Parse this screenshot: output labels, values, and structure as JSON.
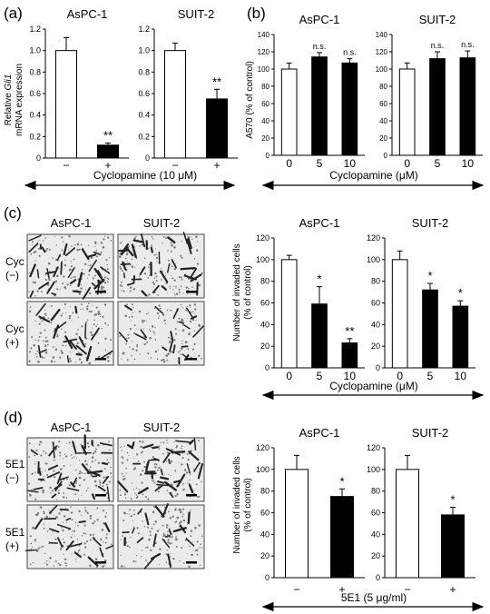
{
  "panel_letters": [
    "(a)",
    "(b)",
    "(c)",
    "(d)"
  ],
  "colors": {
    "control": "#ffffff",
    "treated": "#000000",
    "axis": "#000000"
  },
  "panel_a": {
    "ylabel_line1": "Relative ",
    "ylabel_italic": "Gli1",
    "ylabel_line2": "mRNA expression",
    "treatment_label": "Cyclopamine (10 μM)"
  },
  "panel_b": {
    "ylabel": "A570 (% of control)",
    "treatment_label": "Cyclopamine (μM)"
  },
  "panel_c": {
    "image_col_labels": [
      "AsPC-1",
      "SUIT-2"
    ],
    "image_row_labels": [
      [
        "Cyc",
        "(−)"
      ],
      [
        "Cyc",
        "(+)"
      ]
    ],
    "ylabel_line1": "Number of invaded cells",
    "ylabel_line2": "(% of control)",
    "treatment_label": "Cyclopamine (μM)"
  },
  "panel_d": {
    "image_col_labels": [
      "AsPC-1",
      "SUIT-2"
    ],
    "image_row_labels": [
      [
        "5E1",
        "(−)"
      ],
      [
        "5E1",
        "(+)"
      ]
    ],
    "ylabel_line1": "Number of invaded cells",
    "ylabel_line2": "(% of control)",
    "treatment_label": "5E1 (5 μg/ml)"
  },
  "chart_data": [
    {
      "id": "a-aspc1",
      "type": "bar",
      "title": "AsPC-1",
      "categories": [
        "−",
        "+"
      ],
      "values": [
        1.0,
        0.12
      ],
      "errors": [
        0.12,
        0.02
      ],
      "significance": [
        "",
        "**"
      ],
      "ylim": [
        0,
        1.2
      ],
      "yticks": [
        "0",
        "0.2",
        "0.4",
        "0.6",
        "0.8",
        "1.0",
        "1.2"
      ]
    },
    {
      "id": "a-suit2",
      "type": "bar",
      "title": "SUIT-2",
      "categories": [
        "−",
        "+"
      ],
      "values": [
        1.0,
        0.55
      ],
      "errors": [
        0.07,
        0.09
      ],
      "significance": [
        "",
        "**"
      ],
      "ylim": [
        0,
        1.2
      ],
      "yticks": [
        "0",
        "0.2",
        "0.4",
        "0.6",
        "0.8",
        "1.0",
        "1.2"
      ]
    },
    {
      "id": "b-aspc1",
      "type": "bar",
      "title": "AsPC-1",
      "categories": [
        "0",
        "5",
        "10"
      ],
      "values": [
        100,
        114,
        107
      ],
      "errors": [
        7,
        5,
        5
      ],
      "significance": [
        "",
        "n.s.",
        "n.s."
      ],
      "ylim": [
        0,
        140
      ],
      "yticks": [
        "0",
        "20",
        "40",
        "60",
        "80",
        "100",
        "120",
        "140"
      ]
    },
    {
      "id": "b-suit2",
      "type": "bar",
      "title": "SUIT-2",
      "categories": [
        "0",
        "5",
        "10"
      ],
      "values": [
        100,
        112,
        113
      ],
      "errors": [
        7,
        8,
        8
      ],
      "significance": [
        "",
        "n.s.",
        "n.s."
      ],
      "ylim": [
        0,
        140
      ],
      "yticks": [
        "0",
        "20",
        "40",
        "60",
        "80",
        "100",
        "120",
        "140"
      ]
    },
    {
      "id": "c-aspc1",
      "type": "bar",
      "title": "AsPC-1",
      "categories": [
        "0",
        "5",
        "10"
      ],
      "values": [
        100,
        59,
        23
      ],
      "errors": [
        4,
        16,
        4
      ],
      "significance": [
        "",
        "*",
        "**"
      ],
      "ylim": [
        0,
        120
      ],
      "yticks": [
        "0",
        "20",
        "40",
        "60",
        "80",
        "100",
        "120"
      ]
    },
    {
      "id": "c-suit2",
      "type": "bar",
      "title": "SUIT-2",
      "categories": [
        "0",
        "5",
        "10"
      ],
      "values": [
        100,
        72,
        57
      ],
      "errors": [
        8,
        6,
        5
      ],
      "significance": [
        "",
        "*",
        "*"
      ],
      "ylim": [
        0,
        120
      ],
      "yticks": [
        "0",
        "20",
        "40",
        "60",
        "80",
        "100",
        "120"
      ]
    },
    {
      "id": "d-aspc1",
      "type": "bar",
      "title": "AsPC-1",
      "categories": [
        "−",
        "+"
      ],
      "values": [
        100,
        75
      ],
      "errors": [
        13,
        7
      ],
      "significance": [
        "",
        "*"
      ],
      "ylim": [
        0,
        120
      ],
      "yticks": [
        "0",
        "20",
        "40",
        "60",
        "80",
        "100",
        "120"
      ]
    },
    {
      "id": "d-suit2",
      "type": "bar",
      "title": "SUIT-2",
      "categories": [
        "−",
        "+"
      ],
      "values": [
        100,
        58
      ],
      "errors": [
        13,
        7
      ],
      "significance": [
        "",
        "*"
      ],
      "ylim": [
        0,
        120
      ],
      "yticks": [
        "0",
        "20",
        "40",
        "60",
        "80",
        "100",
        "120"
      ]
    }
  ]
}
